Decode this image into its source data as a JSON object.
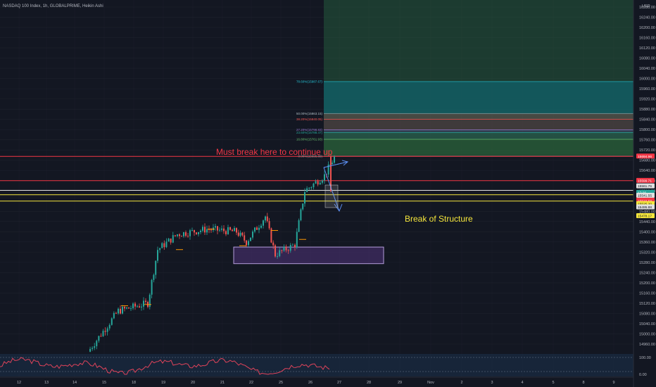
{
  "header": {
    "title": "NASDAQ 100 Index, 1h, GLOBALPRIME, Heikin Ashi"
  },
  "currency": "USD",
  "colors": {
    "bg": "#131722",
    "up": "#26a69a",
    "down": "#ef5350",
    "red_line": "#f23645",
    "white_line": "#e0e0e0",
    "yellow_line": "#f5e63c",
    "zone": "#7e57c2",
    "target": "#2e7d4a",
    "grid": "#1e222d",
    "osc": "#e0435a",
    "osc_bg": "#1b2f4a"
  },
  "annotations": {
    "must_break": "Must break here to continue up",
    "bos": "Break of Structure"
  },
  "chart_data": {
    "type": "candlestick",
    "title": "NASDAQ 100 Index, 1h, GLOBALPRIME, Heikin Ashi",
    "y_ticks": [
      16280,
      16240,
      16200,
      16160,
      16120,
      16080,
      16040,
      16000,
      15960,
      15920,
      15880,
      15840,
      15800,
      15760,
      15720,
      15680,
      15640,
      15600,
      15560,
      15520,
      15480,
      15440,
      15400,
      15360,
      15320,
      15280,
      15240,
      15200,
      15160,
      15120,
      15080,
      15040,
      15000,
      14960
    ],
    "x_ticks": [
      "12",
      "13",
      "14",
      "15",
      "18",
      "19",
      "20",
      "21",
      "22",
      "25",
      "26",
      "27",
      "28",
      "29",
      "Nov",
      "2",
      "3",
      "4",
      "5",
      "8",
      "9"
    ],
    "ylim": [
      14930,
      16300
    ],
    "price_labels": [
      "15694.96",
      "15599.71",
      "15561.76",
      "17:26",
      "15539.26",
      "15541.55",
      "15519.58",
      "15525.20",
      "15495.88",
      "15478.17"
    ],
    "fib_levels": [
      {
        "label": "78.60%(15987.67)",
        "value": 15987.67
      },
      {
        "label": "50.00%(15863.15)",
        "value": 15863.15
      },
      {
        "label": "38.20%(15840.05)",
        "value": 15840.05
      },
      {
        "label": "27.20%(15798.83)",
        "value": 15798.83
      },
      {
        "label": "23.60%(15788.47)",
        "value": 15788.47
      },
      {
        "label": "16.80%(15761.93)",
        "value": 15761.93
      },
      {
        "label": "0.00%(15695.89)",
        "value": 15695.89
      }
    ],
    "horizontal_lines": [
      {
        "name": "must-break-line",
        "value": 15695,
        "color": "red"
      },
      {
        "name": "resistance-line",
        "value": 15600,
        "color": "red"
      },
      {
        "name": "support-line-white",
        "value": 15562,
        "color": "white"
      },
      {
        "name": "bos-line-upper",
        "value": 15545,
        "color": "yellow"
      },
      {
        "name": "bos-line-lower",
        "value": 15520,
        "color": "yellow"
      }
    ],
    "demand_zone": {
      "top": 15340,
      "bottom": 15275
    },
    "target_zone": {
      "top": 16300,
      "bottom": 15700
    },
    "oscillator_ticks": [
      "100.00",
      "0.00"
    ],
    "candles_close_path": [
      {
        "x": "14",
        "value": 14930
      },
      {
        "x": "15",
        "value": 15090
      },
      {
        "x": "18",
        "value": 15120
      },
      {
        "x": "18",
        "value": 15330
      },
      {
        "x": "19",
        "value": 15390
      },
      {
        "x": "20",
        "value": 15410
      },
      {
        "x": "21",
        "value": 15400
      },
      {
        "x": "21",
        "value": 15360
      },
      {
        "x": "22",
        "value": 15460
      },
      {
        "x": "22",
        "value": 15310
      },
      {
        "x": "25",
        "value": 15350
      },
      {
        "x": "25",
        "value": 15560
      },
      {
        "x": "26",
        "value": 15620
      },
      {
        "x": "26",
        "value": 15690
      },
      {
        "x": "26",
        "value": 15545
      }
    ]
  }
}
